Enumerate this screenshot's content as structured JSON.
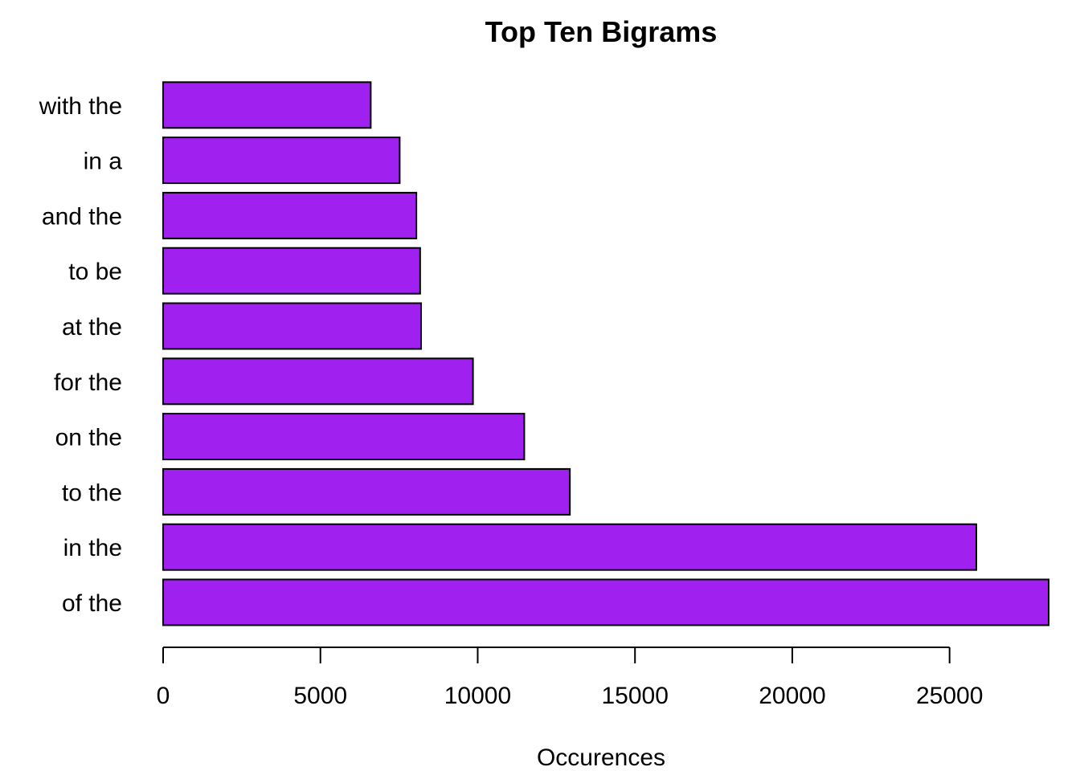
{
  "chart_data": {
    "type": "bar",
    "orientation": "horizontal",
    "title": "Top Ten Bigrams",
    "xlabel": "Occurences",
    "ylabel": "",
    "categories": [
      "of the",
      "in the",
      "to the",
      "on the",
      "for the",
      "at the",
      "to be",
      "and the",
      "in a",
      "with the"
    ],
    "values": [
      28150,
      25850,
      12930,
      11480,
      9850,
      8200,
      8170,
      8050,
      7520,
      6600
    ],
    "xlim": [
      0,
      28150
    ],
    "xticks": [
      0,
      5000,
      10000,
      15000,
      20000,
      25000
    ],
    "bar_color": "#A020F0",
    "grid": false
  }
}
